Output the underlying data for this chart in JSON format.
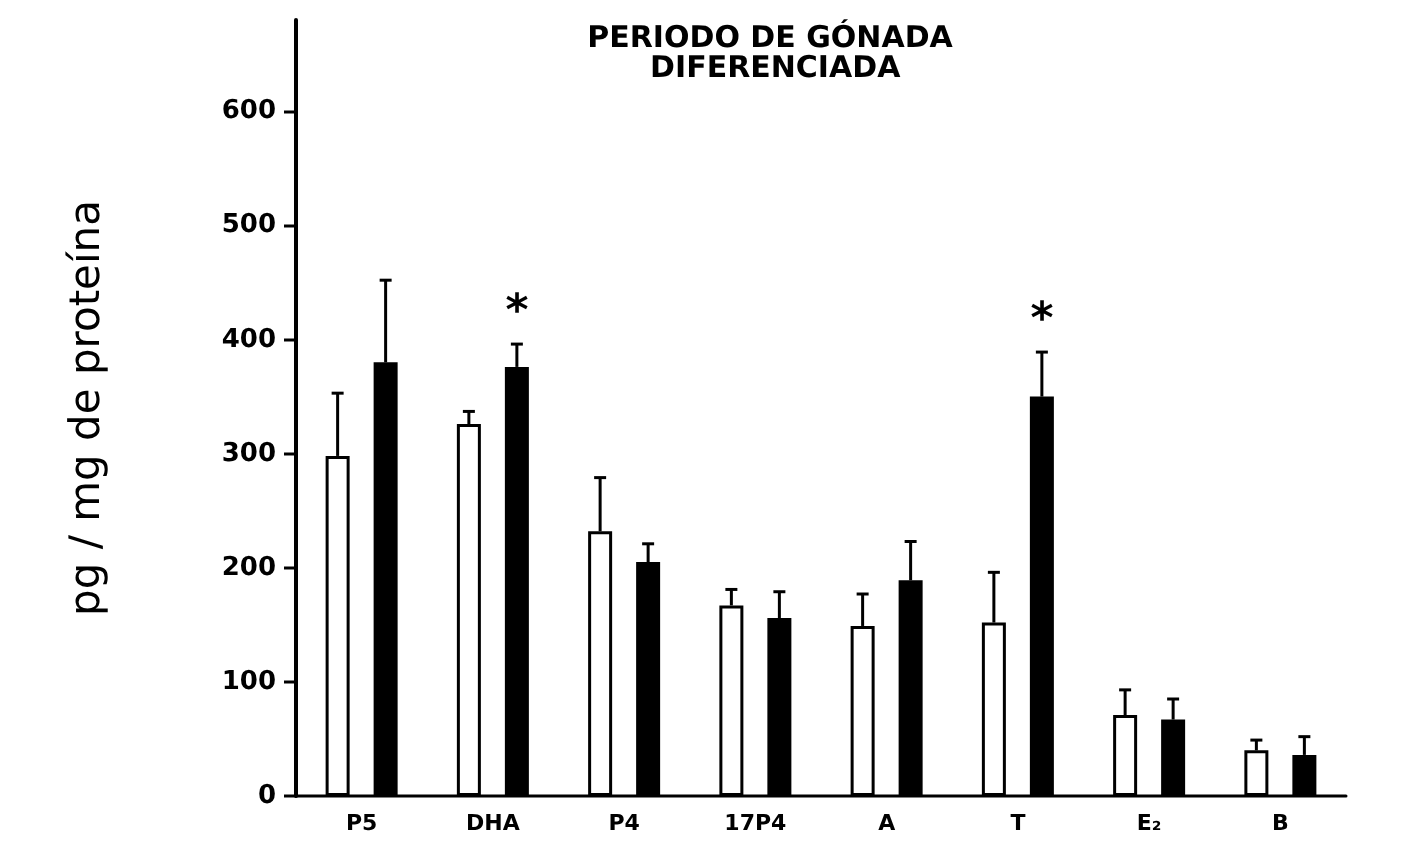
{
  "chart_data": {
    "type": "bar",
    "title": "PERIODO DE GÓNADA DIFERENCIADA",
    "ylabel": "pg / mg de proteína",
    "categories": [
      "P5",
      "DHA",
      "P4",
      "17P4",
      "A",
      "T",
      "E₂",
      "B"
    ],
    "series": [
      {
        "color": "#ffffff",
        "values": [
          298,
          326,
          232,
          167,
          149,
          152,
          71,
          40
        ],
        "errors": [
          55,
          11,
          47,
          14,
          28,
          44,
          22,
          9
        ]
      },
      {
        "color": "#000000",
        "values": [
          380,
          376,
          205,
          156,
          189,
          350,
          67,
          36
        ],
        "errors": [
          72,
          20,
          16,
          23,
          34,
          39,
          18,
          16
        ],
        "value_labels": [
          null,
          "*",
          null,
          null,
          null,
          "*",
          null,
          null
        ]
      }
    ],
    "ylim": [
      0,
      680
    ],
    "yticks": [
      0,
      100,
      200,
      300,
      400,
      500,
      600
    ],
    "grid": false
  }
}
